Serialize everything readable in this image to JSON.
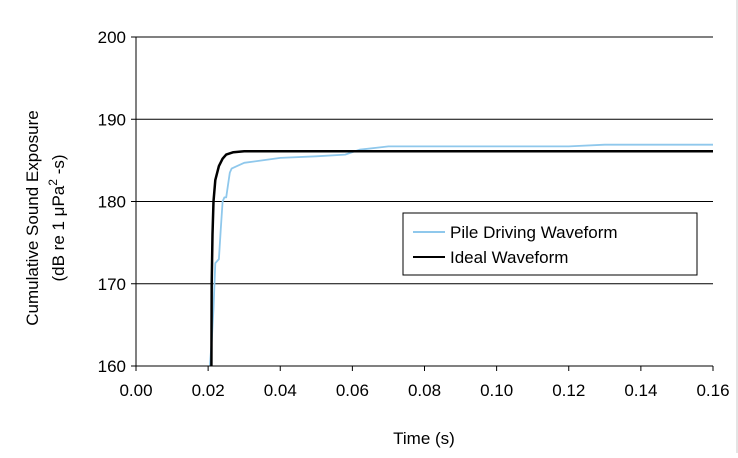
{
  "chart_data": {
    "type": "line",
    "xlabel": "Time (s)",
    "ylabel_line1": "Cumulative Sound Exposure",
    "ylabel_line2_pre": "(dB re 1 μPa",
    "ylabel_sup": "2",
    "ylabel_line2_post": " -s)",
    "xlim": [
      0,
      0.16
    ],
    "ylim": [
      160,
      200
    ],
    "x_ticks": [
      "0.00",
      "0.02",
      "0.04",
      "0.06",
      "0.08",
      "0.10",
      "0.12",
      "0.14",
      "0.16"
    ],
    "y_ticks": [
      "160",
      "170",
      "180",
      "190",
      "200"
    ],
    "grid": "horizontal",
    "legend_position": "right",
    "series": [
      {
        "name": "Pile Driving Waveform",
        "color": "#8fc8ec",
        "points": [
          [
            0.0205,
            160
          ],
          [
            0.021,
            163
          ],
          [
            0.0215,
            167
          ],
          [
            0.022,
            172.5
          ],
          [
            0.023,
            173
          ],
          [
            0.0235,
            176.5
          ],
          [
            0.024,
            180
          ],
          [
            0.0245,
            180.5
          ],
          [
            0.025,
            180.5
          ],
          [
            0.0255,
            182
          ],
          [
            0.026,
            183.5
          ],
          [
            0.0265,
            184
          ],
          [
            0.028,
            184.3
          ],
          [
            0.03,
            184.7
          ],
          [
            0.035,
            185.0
          ],
          [
            0.04,
            185.3
          ],
          [
            0.05,
            185.5
          ],
          [
            0.058,
            185.7
          ],
          [
            0.062,
            186.3
          ],
          [
            0.07,
            186.7
          ],
          [
            0.1,
            186.7
          ],
          [
            0.12,
            186.7
          ],
          [
            0.13,
            186.9
          ],
          [
            0.16,
            186.9
          ]
        ]
      },
      {
        "name": "Ideal Waveform",
        "color": "#000000",
        "points": [
          [
            0.0209,
            160
          ],
          [
            0.021,
            170
          ],
          [
            0.0212,
            176
          ],
          [
            0.0215,
            180
          ],
          [
            0.022,
            182.6
          ],
          [
            0.023,
            184.3
          ],
          [
            0.024,
            185.2
          ],
          [
            0.025,
            185.7
          ],
          [
            0.027,
            186.0
          ],
          [
            0.03,
            186.1
          ],
          [
            0.16,
            186.1
          ]
        ]
      }
    ]
  }
}
